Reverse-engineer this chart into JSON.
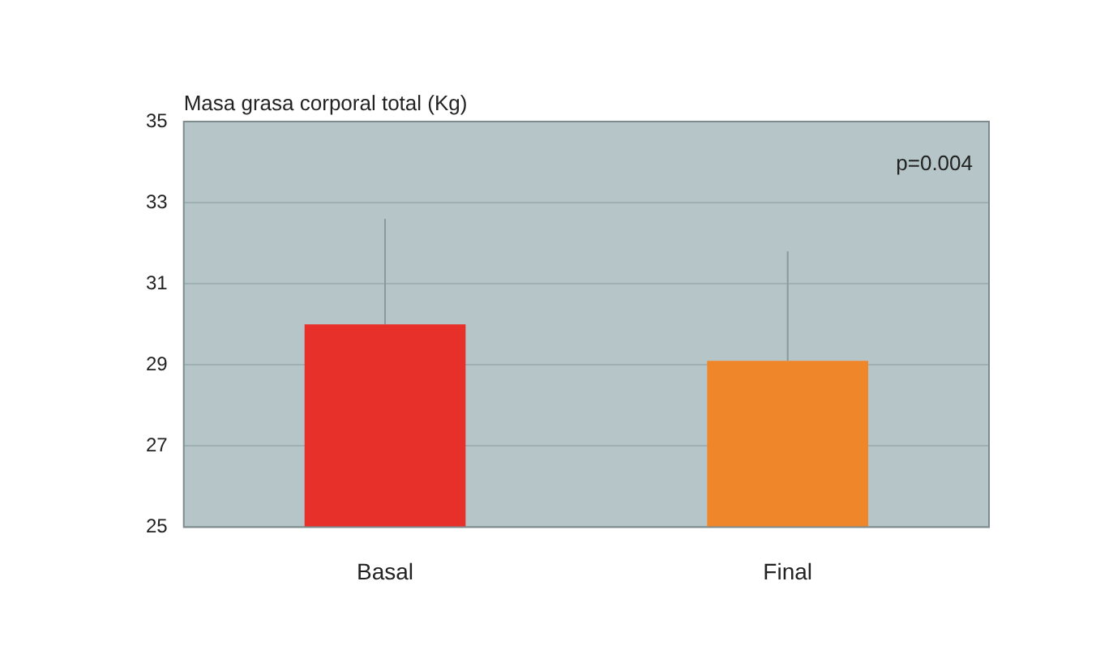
{
  "chart_data": {
    "type": "bar",
    "ylabel": "Masa grasa corporal total (Kg)",
    "categories": [
      "Basal",
      "Final"
    ],
    "values": [
      30.0,
      29.1
    ],
    "colors": [
      "#e8302a",
      "#f0862a"
    ],
    "errors": [
      [
        30.0,
        32.6
      ],
      [
        29.1,
        31.8
      ]
    ],
    "ylim": [
      25,
      35
    ],
    "yticks": [
      25,
      27,
      29,
      31,
      33,
      35
    ],
    "grid": "y",
    "annotations": [
      "p=0.004"
    ]
  }
}
